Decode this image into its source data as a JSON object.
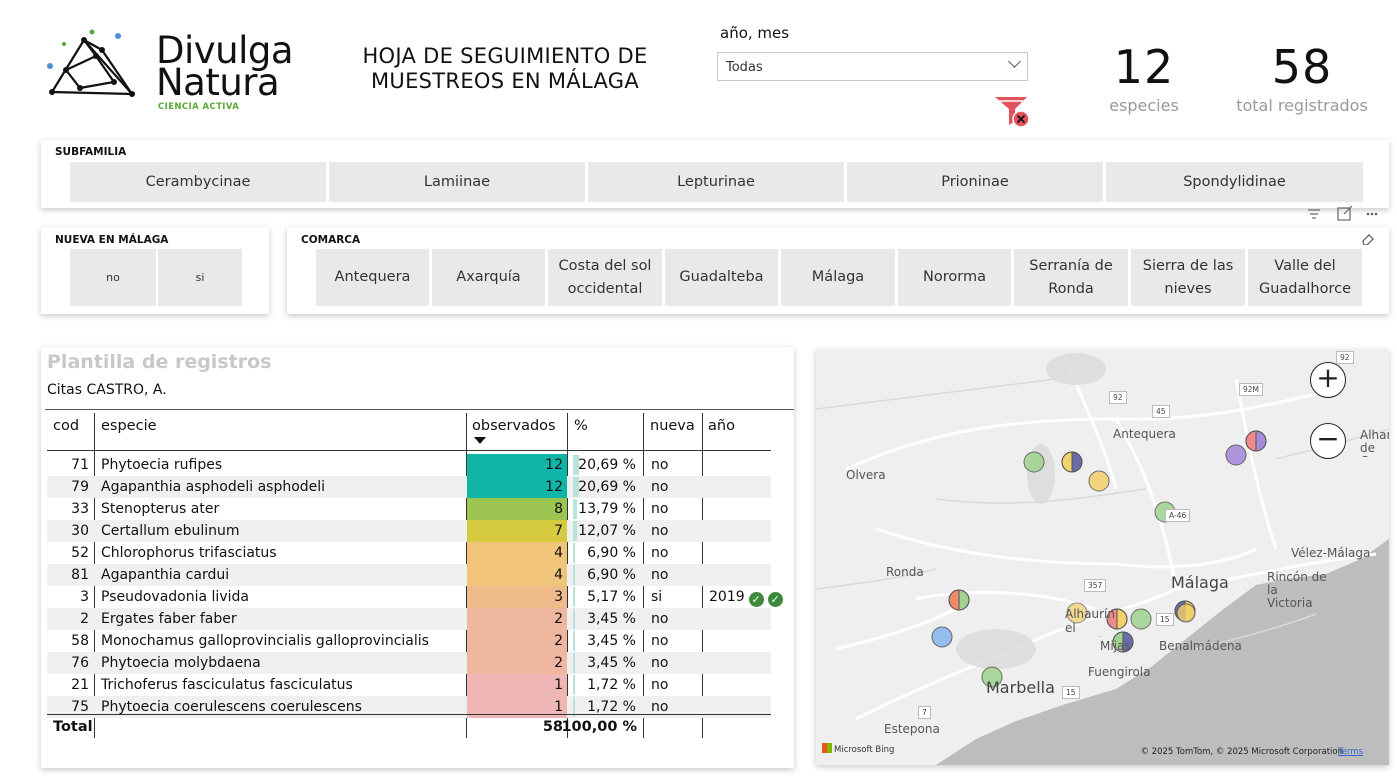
{
  "brand": {
    "line1": "Divulga",
    "line2": "Natura",
    "tagline": "CIENCIA ACTIVA"
  },
  "header": {
    "title": "HOJA DE SEGUIMIENTO DE MUESTREOS EN MÁLAGA",
    "slicer_label": "año, mes",
    "slicer_value": "Todas"
  },
  "kpis": [
    {
      "value": "12",
      "label": "especies"
    },
    {
      "value": "58",
      "label": "total registrados"
    }
  ],
  "subfamilia": {
    "title": "SUBFAMILIA",
    "options": [
      "Cerambycinae",
      "Lamiinae",
      "Lepturinae",
      "Prioninae",
      "Spondylidinae"
    ]
  },
  "nueva": {
    "title": "NUEVA EN MÁLAGA",
    "options": [
      "no",
      "si"
    ]
  },
  "comarca": {
    "title": "COMARCA",
    "options": [
      "Antequera",
      "Axarquía",
      "Costa del sol occidental",
      "Guadalteba",
      "Málaga",
      "Nororma",
      "Serranía de Ronda",
      "Sierra de las nieves",
      "Valle del Guadalhorce"
    ]
  },
  "table": {
    "title": "Plantilla de registros",
    "subtitle": "Citas CASTRO, A.",
    "headers": {
      "cod": "cod",
      "especie": "especie",
      "observados": "observados",
      "pct": "%",
      "nueva": "nueva",
      "anio": "año"
    },
    "rows": [
      {
        "cod": "71",
        "especie": "Phytoecia rufipes",
        "observados": "12",
        "pct": "20,69 %",
        "pct_value": 20.69,
        "nueva": "no",
        "anio": "",
        "color": "#0fb5a7"
      },
      {
        "cod": "79",
        "especie": "Agapanthia asphodeli asphodeli",
        "observados": "12",
        "pct": "20,69 %",
        "pct_value": 20.69,
        "nueva": "no",
        "anio": "",
        "color": "#0fb5a7"
      },
      {
        "cod": "33",
        "especie": "Stenopterus ater",
        "observados": "8",
        "pct": "13,79 %",
        "pct_value": 13.79,
        "nueva": "no",
        "anio": "",
        "color": "#9cc451"
      },
      {
        "cod": "30",
        "especie": "Certallum ebulinum",
        "observados": "7",
        "pct": "12,07 %",
        "pct_value": 12.07,
        "nueva": "no",
        "anio": "",
        "color": "#d6ca3e"
      },
      {
        "cod": "52",
        "especie": "Chlorophorus trifasciatus",
        "observados": "4",
        "pct": "6,90 %",
        "pct_value": 6.9,
        "nueva": "no",
        "anio": "",
        "color": "#f0c47a"
      },
      {
        "cod": "81",
        "especie": "Agapanthia cardui",
        "observados": "4",
        "pct": "6,90 %",
        "pct_value": 6.9,
        "nueva": "no",
        "anio": "",
        "color": "#f0c47a"
      },
      {
        "cod": "3",
        "especie": "Pseudovadonia livida",
        "observados": "3",
        "pct": "5,17 %",
        "pct_value": 5.17,
        "nueva": "si",
        "anio": "2019",
        "color": "#efbb8a"
      },
      {
        "cod": "2",
        "especie": "Ergates faber faber",
        "observados": "2",
        "pct": "3,45 %",
        "pct_value": 3.45,
        "nueva": "no",
        "anio": "",
        "color": "#efb6a0"
      },
      {
        "cod": "58",
        "especie": "Monochamus galloprovincialis galloprovincialis",
        "observados": "2",
        "pct": "3,45 %",
        "pct_value": 3.45,
        "nueva": "no",
        "anio": "",
        "color": "#efb6a0"
      },
      {
        "cod": "76",
        "especie": "Phytoecia molybdaena",
        "observados": "2",
        "pct": "3,45 %",
        "pct_value": 3.45,
        "nueva": "no",
        "anio": "",
        "color": "#efb6a0"
      },
      {
        "cod": "21",
        "especie": "Trichoferus fasciculatus fasciculatus",
        "observados": "1",
        "pct": "1,72 %",
        "pct_value": 1.72,
        "nueva": "no",
        "anio": "",
        "color": "#efb6b6"
      },
      {
        "cod": "75",
        "especie": "Phytoecia coerulescens coerulescens",
        "observados": "1",
        "pct": "1,72 %",
        "pct_value": 1.72,
        "nueva": "no",
        "anio": "",
        "color": "#efb6b6"
      }
    ],
    "total": {
      "label": "Total",
      "observados": "58",
      "pct": "100,00 %"
    }
  },
  "map": {
    "labels": [
      "Antequera",
      "Olvera",
      "Ronda",
      "Vélez-Málaga",
      "Rincón de la Victoria",
      "Málaga",
      "Alhaurín el Grande",
      "Mijas",
      "Benalmádena",
      "Fuengirola",
      "Marbella",
      "Estepona",
      "Alhama de Granada"
    ],
    "roads": [
      "92",
      "45",
      "92M",
      "A-46",
      "357",
      "15",
      "15",
      "7",
      "92"
    ],
    "attribution": "© 2025 TomTom, © 2025 Microsoft Corporation",
    "terms": "Terms",
    "provider": "Microsoft Bing"
  },
  "colors": {
    "accent_teal": "#0fb5a7",
    "brand_green": "#5aa93a",
    "check_green": "#3d8a3d"
  }
}
